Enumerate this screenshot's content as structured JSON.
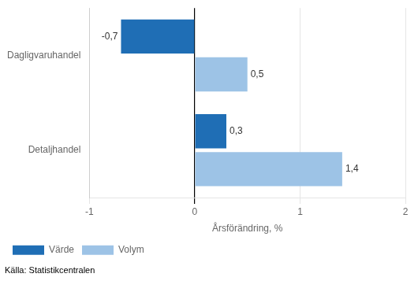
{
  "chart_data": {
    "type": "bar",
    "orientation": "horizontal",
    "categories": [
      "Dagligvaruhandel",
      "Detaljhandel"
    ],
    "series": [
      {
        "name": "Värde",
        "color": "#1f6eb5",
        "values": [
          -0.7,
          0.3
        ],
        "value_labels": [
          "-0,7",
          "0,3"
        ]
      },
      {
        "name": "Volym",
        "color": "#9dc3e6",
        "values": [
          0.5,
          1.4
        ],
        "value_labels": [
          "0,5",
          "1,4"
        ]
      }
    ],
    "xlabel": "Årsförändring, %",
    "xlim": [
      -1,
      2
    ],
    "xticks": [
      -1,
      0,
      1,
      2
    ],
    "grid": true,
    "legend": "lower left",
    "data_labels": true,
    "source": "Källa: Statistikcentralen"
  }
}
